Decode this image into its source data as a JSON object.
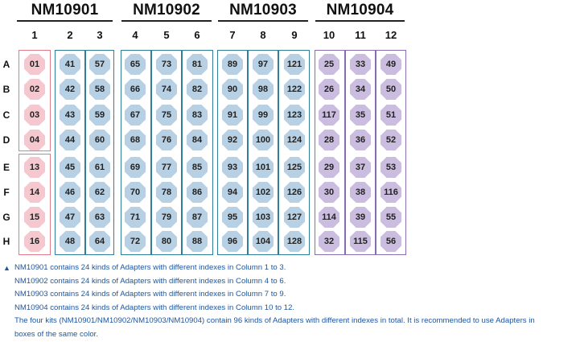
{
  "kits": [
    {
      "name": "NM10901",
      "cols": [
        0,
        2
      ]
    },
    {
      "name": "NM10902",
      "cols": [
        3,
        5
      ]
    },
    {
      "name": "NM10903",
      "cols": [
        6,
        8
      ]
    },
    {
      "name": "NM10904",
      "cols": [
        9,
        11
      ]
    }
  ],
  "columns": [
    "1",
    "2",
    "3",
    "4",
    "5",
    "6",
    "7",
    "8",
    "9",
    "10",
    "11",
    "12"
  ],
  "rows": [
    "A",
    "B",
    "C",
    "D",
    "E",
    "F",
    "G",
    "H"
  ],
  "colors": {
    "pink_fill": "#f5c8cf",
    "pink_border": "#e07b8a",
    "blue_fill": "#b8d0e3",
    "teal_border": "#2f7f98",
    "purple_fill": "#cbbddf",
    "purple_border": "#8a6cb0",
    "note_text": "#1e56a0"
  },
  "wells": [
    [
      "01",
      "41",
      "57",
      "65",
      "73",
      "81",
      "89",
      "97",
      "121",
      "25",
      "33",
      "49"
    ],
    [
      "02",
      "42",
      "58",
      "66",
      "74",
      "82",
      "90",
      "98",
      "122",
      "26",
      "34",
      "50"
    ],
    [
      "03",
      "43",
      "59",
      "67",
      "75",
      "83",
      "91",
      "99",
      "123",
      "117",
      "35",
      "51"
    ],
    [
      "04",
      "44",
      "60",
      "68",
      "76",
      "84",
      "92",
      "100",
      "124",
      "28",
      "36",
      "52"
    ],
    [
      "13",
      "45",
      "61",
      "69",
      "77",
      "85",
      "93",
      "101",
      "125",
      "29",
      "37",
      "53"
    ],
    [
      "14",
      "46",
      "62",
      "70",
      "78",
      "86",
      "94",
      "102",
      "126",
      "30",
      "38",
      "116"
    ],
    [
      "15",
      "47",
      "63",
      "71",
      "79",
      "87",
      "95",
      "103",
      "127",
      "114",
      "39",
      "55"
    ],
    [
      "16",
      "48",
      "64",
      "72",
      "80",
      "88",
      "96",
      "104",
      "128",
      "32",
      "115",
      "56"
    ]
  ],
  "notes": {
    "marker": "▲",
    "lines": [
      "NM10901 contains 24 kinds of Adapters with different indexes in Column 1 to 3.",
      "NM10902 contains 24 kinds of Adapters with different indexes in Column 4 to 6.",
      "NM10903 contains 24 kinds of Adapters with different indexes in Column 7 to 9.",
      "NM10904 contains 24 kinds of Adapters with different indexes in Column 10 to 12.",
      "The four kits (NM10901/NM10902/NM10903/NM10904) contain 96 kinds of Adapters with different indexes in total.  It is recommended to use Adapters in",
      "boxes of the same color."
    ]
  }
}
